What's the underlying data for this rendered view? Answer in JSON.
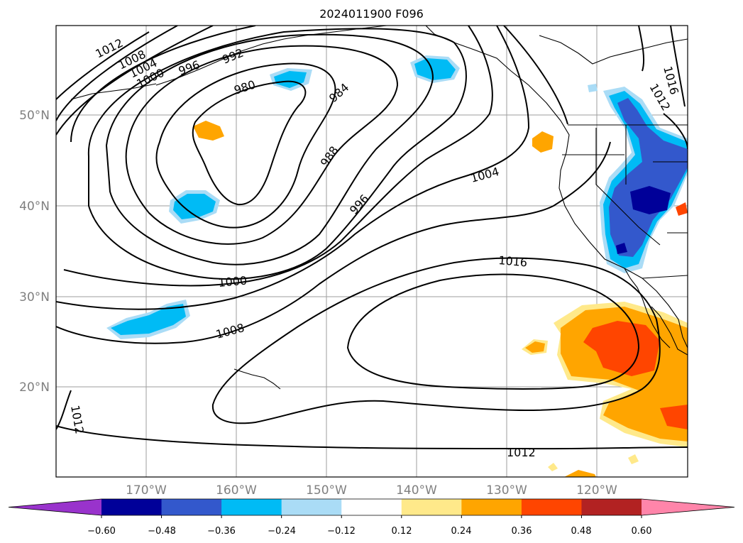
{
  "title": "2024011900 F096",
  "map": {
    "lat_labels": [
      "50°N",
      "40°N",
      "30°N",
      "20°N"
    ],
    "lon_labels": [
      "170°W",
      "160°W",
      "150°W",
      "140°W",
      "130°W",
      "120°W"
    ],
    "isobar_labels": [
      "1012",
      "1008",
      "1004",
      "1000",
      "996",
      "992",
      "980",
      "984",
      "988",
      "996",
      "1004",
      "1016",
      "1000",
      "1008",
      "1012",
      "1012",
      "1016",
      "1012"
    ],
    "colors": {
      "neg_060": "#9933cc",
      "neg_048": "#000099",
      "neg_036": "#3358cc",
      "neg_024": "#00bbf5",
      "neg_012": "#aadcf6",
      "zero": "#ffffff",
      "pos_012": "#ffe98a",
      "pos_024": "#ffa500",
      "pos_036": "#ff4500",
      "pos_048": "#b22222",
      "pos_060": "#ff85aa"
    }
  },
  "colorbar": {
    "tick_labels": [
      "−0.60",
      "−0.48",
      "−0.36",
      "−0.24",
      "−0.12",
      "0.12",
      "0.24",
      "0.36",
      "0.48",
      "0.60"
    ],
    "colors": [
      "#9933cc",
      "#000099",
      "#3358cc",
      "#00bbf5",
      "#aadcf6",
      "#ffffff",
      "#ffe98a",
      "#ffa500",
      "#ff4500",
      "#b22222",
      "#ff85aa"
    ]
  }
}
